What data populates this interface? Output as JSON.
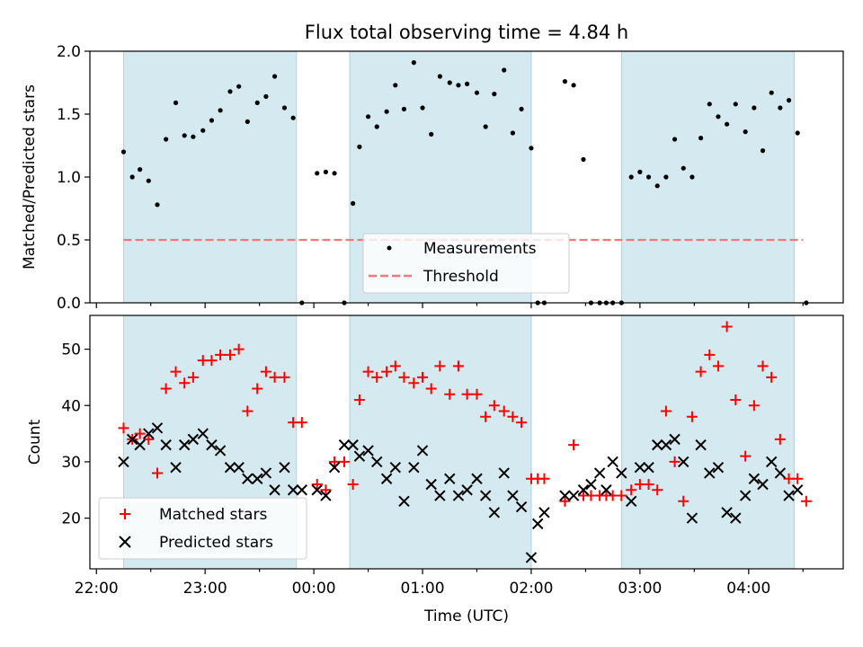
{
  "chart_data": [
    {
      "type": "scatter",
      "title": "Flux total observing time = 4.84 h",
      "xlabel": "",
      "ylabel": "Matched/Predicted stars",
      "ylim": [
        0,
        2.0
      ],
      "yticks": [
        "0.0",
        "0.5",
        "1.0",
        "1.5",
        "2.0"
      ],
      "xlim": [
        -0.06,
        6.87
      ],
      "shaded_intervals": [
        [
          0.25,
          1.84
        ],
        [
          2.33,
          4.0
        ],
        [
          4.83,
          6.42
        ]
      ],
      "threshold": {
        "label": "Threshold",
        "y": 0.5,
        "x_range": [
          0.25,
          6.5
        ]
      },
      "legend": {
        "position": "bottom-center",
        "entries": [
          "Measurements",
          "Threshold"
        ]
      },
      "series": [
        {
          "name": "Measurements",
          "x": [
            0.25,
            0.33,
            0.4,
            0.48,
            0.56,
            0.64,
            0.73,
            0.81,
            0.89,
            0.98,
            1.06,
            1.14,
            1.23,
            1.31,
            1.39,
            1.48,
            1.56,
            1.64,
            1.73,
            1.81,
            1.89,
            2.03,
            2.11,
            2.19,
            2.28,
            2.36,
            2.42,
            2.5,
            2.58,
            2.67,
            2.75,
            2.83,
            2.92,
            3.0,
            3.08,
            3.16,
            3.25,
            3.33,
            3.41,
            3.5,
            3.58,
            3.66,
            3.75,
            3.83,
            3.91,
            4.0,
            4.06,
            4.12,
            4.31,
            4.39,
            4.48,
            4.55,
            4.63,
            4.69,
            4.75,
            4.83,
            4.92,
            5.0,
            5.08,
            5.16,
            5.24,
            5.32,
            5.4,
            5.48,
            5.56,
            5.64,
            5.72,
            5.8,
            5.88,
            5.97,
            6.05,
            6.13,
            6.21,
            6.29,
            6.37,
            6.45,
            6.53
          ],
          "y": [
            1.2,
            1.0,
            1.06,
            0.97,
            0.78,
            1.3,
            1.59,
            1.33,
            1.32,
            1.37,
            1.45,
            1.53,
            1.68,
            1.72,
            1.44,
            1.59,
            1.64,
            1.8,
            1.55,
            1.47,
            0.0,
            1.03,
            1.04,
            1.03,
            0.0,
            0.79,
            1.24,
            1.48,
            1.4,
            1.52,
            1.73,
            1.54,
            1.91,
            1.55,
            1.34,
            1.8,
            1.75,
            1.73,
            1.74,
            1.67,
            1.4,
            1.66,
            1.85,
            1.35,
            1.54,
            1.23,
            0.0,
            0.0,
            1.76,
            1.73,
            1.14,
            0.0,
            0.0,
            0.0,
            0.0,
            0.0,
            1.0,
            1.04,
            1.0,
            0.93,
            1.0,
            1.3,
            1.07,
            1.0,
            1.31,
            1.58,
            1.48,
            1.42,
            1.58,
            1.36,
            1.55,
            1.21,
            1.67,
            1.55,
            1.61,
            1.35,
            0.0
          ]
        }
      ]
    },
    {
      "type": "scatter",
      "title": "",
      "xlabel": "Time (UTC)",
      "ylabel": "Count",
      "ylim": [
        11,
        56
      ],
      "yticks": [
        "20",
        "30",
        "40",
        "50"
      ],
      "xticks": [
        "22:00",
        "23:00",
        "00:00",
        "01:00",
        "02:00",
        "03:00",
        "04:00"
      ],
      "legend": {
        "position": "bottom-left",
        "entries": [
          "Matched stars",
          "Predicted stars"
        ]
      },
      "series": [
        {
          "name": "Matched stars",
          "x": [
            0.25,
            0.33,
            0.4,
            0.48,
            0.56,
            0.64,
            0.73,
            0.81,
            0.89,
            0.98,
            1.06,
            1.14,
            1.23,
            1.31,
            1.39,
            1.48,
            1.56,
            1.64,
            1.73,
            1.81,
            1.89,
            2.03,
            2.11,
            2.19,
            2.28,
            2.36,
            2.42,
            2.5,
            2.58,
            2.67,
            2.75,
            2.83,
            2.92,
            3.0,
            3.08,
            3.16,
            3.25,
            3.33,
            3.41,
            3.5,
            3.58,
            3.66,
            3.75,
            3.83,
            3.91,
            4.0,
            4.06,
            4.12,
            4.31,
            4.39,
            4.48,
            4.55,
            4.63,
            4.69,
            4.75,
            4.83,
            4.92,
            5.0,
            5.08,
            5.16,
            5.24,
            5.32,
            5.4,
            5.48,
            5.56,
            5.64,
            5.72,
            5.8,
            5.88,
            5.97,
            6.05,
            6.13,
            6.21,
            6.29,
            6.37,
            6.45,
            6.53
          ],
          "y": [
            36,
            34,
            35,
            34,
            28,
            43,
            46,
            44,
            45,
            48,
            48,
            49,
            49,
            50,
            39,
            43,
            46,
            45,
            45,
            37,
            37,
            26,
            25,
            30,
            30,
            26,
            41,
            46,
            45,
            46,
            47,
            45,
            44,
            45,
            43,
            47,
            42,
            47,
            42,
            42,
            38,
            40,
            39,
            38,
            37,
            27,
            27,
            27,
            23,
            33,
            24,
            24,
            24,
            24,
            24,
            24,
            25,
            26,
            26,
            25,
            39,
            30,
            23,
            38,
            46,
            49,
            47,
            54,
            41,
            31,
            40,
            47,
            45,
            34,
            27,
            27,
            23
          ]
        },
        {
          "name": "Predicted stars",
          "x": [
            0.25,
            0.33,
            0.4,
            0.48,
            0.56,
            0.64,
            0.73,
            0.81,
            0.89,
            0.98,
            1.06,
            1.14,
            1.23,
            1.31,
            1.39,
            1.48,
            1.56,
            1.64,
            1.73,
            1.81,
            1.89,
            2.03,
            2.11,
            2.19,
            2.28,
            2.36,
            2.42,
            2.5,
            2.58,
            2.67,
            2.75,
            2.83,
            2.92,
            3.0,
            3.08,
            3.16,
            3.25,
            3.33,
            3.41,
            3.5,
            3.58,
            3.66,
            3.75,
            3.83,
            3.91,
            4.0,
            4.06,
            4.12,
            4.31,
            4.39,
            4.48,
            4.55,
            4.63,
            4.69,
            4.75,
            4.83,
            4.92,
            5.0,
            5.08,
            5.16,
            5.24,
            5.32,
            5.4,
            5.48,
            5.56,
            5.64,
            5.72,
            5.8,
            5.88,
            5.97,
            6.05,
            6.13,
            6.21,
            6.29,
            6.37,
            6.45
          ],
          "y": [
            30,
            34,
            33,
            35,
            36,
            33,
            29,
            33,
            34,
            35,
            33,
            32,
            29,
            29,
            27,
            27,
            28,
            25,
            29,
            25,
            25,
            25,
            24,
            29,
            33,
            33,
            31,
            32,
            30,
            27,
            29,
            23,
            29,
            32,
            26,
            24,
            27,
            24,
            25,
            27,
            24,
            21,
            28,
            24,
            22,
            13,
            19,
            21,
            24,
            24,
            25,
            26,
            28,
            25,
            30,
            28,
            23,
            29,
            29,
            33,
            33,
            34,
            30,
            20,
            33,
            28,
            29,
            21,
            20,
            24,
            27,
            26,
            30,
            28,
            24,
            25
          ]
        }
      ]
    }
  ],
  "colors": {
    "shade": "#d4eaf0",
    "shade_edge": "#a9d4de",
    "measurements": "#000000",
    "threshold": "#f07a7a",
    "matched": "#ff0000",
    "predicted": "#000000"
  }
}
